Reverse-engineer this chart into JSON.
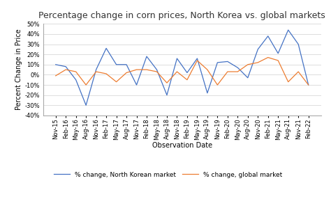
{
  "title": "Percentage change in corn prices, North Korea vs. global markets",
  "xlabel": "Observation Date",
  "ylabel": "Percent Change in Price",
  "ylim": [
    -40,
    50
  ],
  "yticks": [
    -40,
    -30,
    -20,
    -10,
    0,
    10,
    20,
    30,
    40,
    50
  ],
  "background_color": "#f5f5f5",
  "line_nk_color": "#4472c4",
  "line_global_color": "#ed7d31",
  "legend_nk": "% change, North Korean market",
  "legend_global": "% change, global market",
  "x_labels": [
    "Nov-15",
    "Feb-16",
    "May-16",
    "Aug-16",
    "Nov-16",
    "Feb-17",
    "May-17",
    "Aug-17",
    "Nov-17",
    "Feb-18",
    "May-18",
    "Aug-18",
    "Nov-18",
    "Feb-19",
    "May-19",
    "Aug-19",
    "Nov-19",
    "Feb-20",
    "May-20",
    "Aug-20",
    "Nov-20",
    "Feb-21",
    "May-21",
    "Aug-21",
    "Nov-21",
    "Feb-22"
  ],
  "nk_values": [
    10,
    8,
    -5,
    -30,
    5,
    26,
    10,
    10,
    -10,
    18,
    5,
    -20,
    16,
    2,
    16,
    -18,
    12,
    13,
    7,
    -3,
    25,
    38,
    21,
    44,
    30,
    -10
  ],
  "global_values": [
    -1,
    5,
    3,
    -10,
    3,
    1,
    -7,
    2,
    5,
    5,
    3,
    -8,
    3,
    -5,
    14,
    5,
    -10,
    3,
    3,
    10,
    12,
    17,
    14,
    -7,
    3,
    -10
  ],
  "title_fontsize": 9,
  "axis_label_fontsize": 7,
  "tick_fontsize": 6
}
